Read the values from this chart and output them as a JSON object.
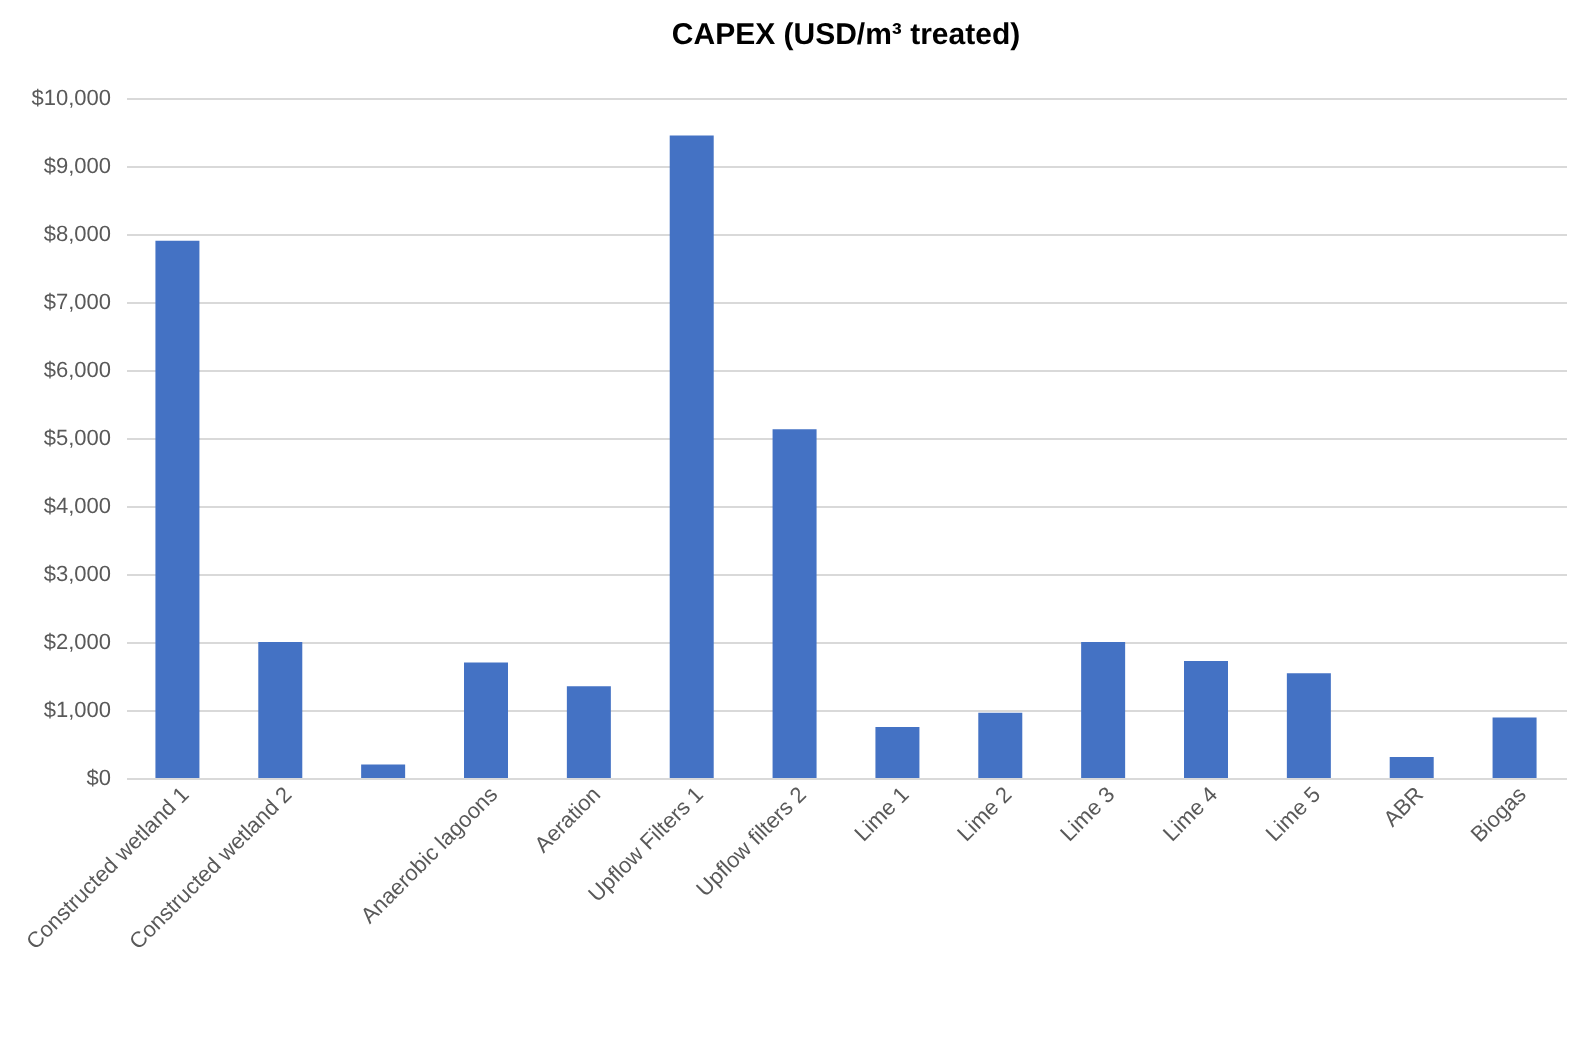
{
  "chart_data": {
    "type": "bar",
    "title": "CAPEX (USD/m³ treated)",
    "categories": [
      "Constructed wetland 1",
      "Constructed wetland 2",
      null,
      "Anaerobic lagoons",
      "Aeration",
      "Upflow Filters 1",
      "Upflow filters 2",
      "Lime 1",
      "Lime 2",
      "Lime 3",
      "Lime 4",
      "Lime 5",
      "ABR",
      "Biogas"
    ],
    "values": [
      7900,
      2000,
      200,
      1700,
      1350,
      9450,
      5130,
      750,
      960,
      2000,
      1720,
      1540,
      310,
      890
    ],
    "color": "#4472c4",
    "ylim": [
      0,
      10000
    ],
    "yticks": [
      {
        "value": 0,
        "label": "$0"
      },
      {
        "value": 1000,
        "label": "$1,000"
      },
      {
        "value": 2000,
        "label": "$2,000"
      },
      {
        "value": 3000,
        "label": "$3,000"
      },
      {
        "value": 4000,
        "label": "$4,000"
      },
      {
        "value": 5000,
        "label": "$5,000"
      },
      {
        "value": 6000,
        "label": "$6,000"
      },
      {
        "value": 7000,
        "label": "$7,000"
      },
      {
        "value": 8000,
        "label": "$8,000"
      },
      {
        "value": 9000,
        "label": "$9,000"
      },
      {
        "value": 10000,
        "label": "$10,000"
      }
    ],
    "grid": "y"
  }
}
